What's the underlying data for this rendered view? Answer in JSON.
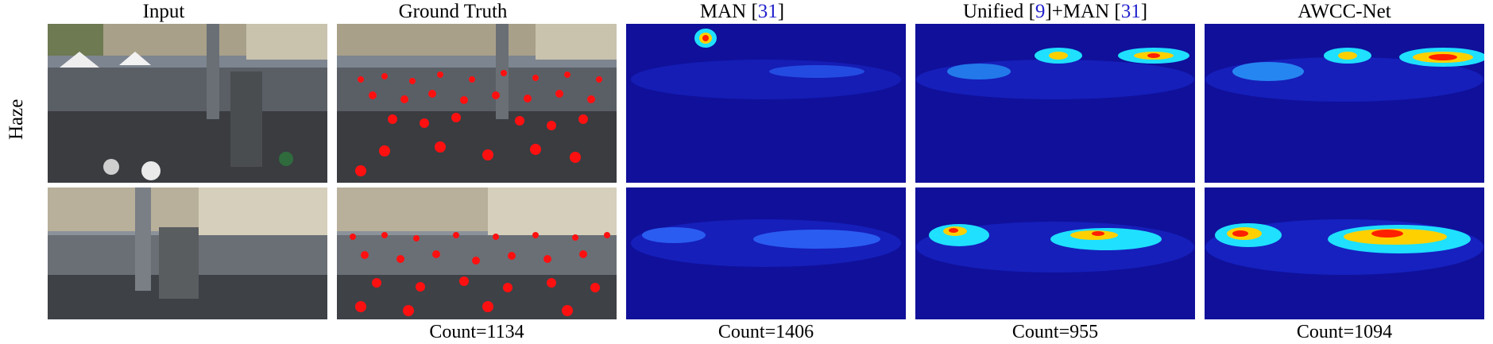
{
  "columns": [
    {
      "key": "input",
      "title": "Input"
    },
    {
      "key": "gt",
      "title": "Ground Truth"
    },
    {
      "key": "man",
      "title_parts": [
        "MAN ",
        "[",
        "31",
        "]"
      ]
    },
    {
      "key": "unified",
      "title_parts": [
        "Unified ",
        "[",
        "9",
        "]",
        "+MAN ",
        "[",
        "31",
        "]"
      ]
    },
    {
      "key": "awcc",
      "title": "AWCC-Net"
    }
  ],
  "row_label": "Haze",
  "counts": {
    "gt": "Count=1134",
    "man": "Count=1406",
    "unified": "Count=955",
    "awcc": "Count=1094"
  },
  "colors": {
    "heatmap_bg": "#10109a",
    "gt_dot": "#ff1010",
    "ref_link": "#2222cc"
  }
}
